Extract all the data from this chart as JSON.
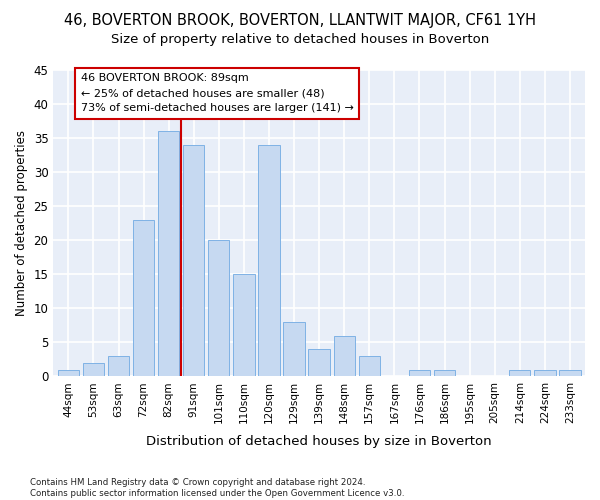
{
  "title": "46, BOVERTON BROOK, BOVERTON, LLANTWIT MAJOR, CF61 1YH",
  "subtitle": "Size of property relative to detached houses in Boverton",
  "xlabel": "Distribution of detached houses by size in Boverton",
  "ylabel": "Number of detached properties",
  "footnote": "Contains HM Land Registry data © Crown copyright and database right 2024.\nContains public sector information licensed under the Open Government Licence v3.0.",
  "categories": [
    "44sqm",
    "53sqm",
    "63sqm",
    "72sqm",
    "82sqm",
    "91sqm",
    "101sqm",
    "110sqm",
    "120sqm",
    "129sqm",
    "139sqm",
    "148sqm",
    "157sqm",
    "167sqm",
    "176sqm",
    "186sqm",
    "195sqm",
    "205sqm",
    "214sqm",
    "224sqm",
    "233sqm"
  ],
  "values": [
    1,
    2,
    3,
    23,
    36,
    34,
    20,
    15,
    34,
    8,
    4,
    6,
    3,
    0,
    1,
    1,
    0,
    0,
    1,
    1,
    1
  ],
  "bar_color": "#c6d9f1",
  "bar_edge_color": "#7fb2e5",
  "vline_x_index": 5,
  "vline_color": "#cc0000",
  "annotation_text": "46 BOVERTON BROOK: 89sqm\n← 25% of detached houses are smaller (48)\n73% of semi-detached houses are larger (141) →",
  "annotation_box_color": "#ffffff",
  "annotation_box_edge": "#cc0000",
  "ylim": [
    0,
    45
  ],
  "yticks": [
    0,
    5,
    10,
    15,
    20,
    25,
    30,
    35,
    40,
    45
  ],
  "bg_color": "#e8eef8",
  "grid_color": "#ffffff",
  "title_fontsize": 10.5,
  "subtitle_fontsize": 9.5,
  "bar_width": 0.85
}
